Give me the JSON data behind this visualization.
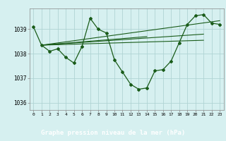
{
  "title": "Graphe pression niveau de la mer (hPa)",
  "background_color": "#d6f0f0",
  "plot_bg_color": "#d6f0f0",
  "label_bg_color": "#2d6b2d",
  "label_text_color": "#ffffff",
  "grid_color": "#b0d4d4",
  "line_color": "#1a5c1a",
  "x_ticks": [
    0,
    1,
    2,
    3,
    4,
    5,
    6,
    7,
    8,
    9,
    10,
    11,
    12,
    13,
    14,
    15,
    16,
    17,
    18,
    19,
    20,
    21,
    22,
    23
  ],
  "x_tick_labels": [
    "0",
    "1",
    "2",
    "3",
    "4",
    "5",
    "6",
    "7",
    "8",
    "9",
    "10",
    "11",
    "12",
    "13",
    "14",
    "15",
    "16",
    "17",
    "18",
    "19",
    "20",
    "21",
    "22",
    "23"
  ],
  "ylim": [
    1035.7,
    1039.85
  ],
  "y_ticks": [
    1036,
    1037,
    1038,
    1039
  ],
  "main_data": {
    "x": [
      0,
      1,
      2,
      3,
      4,
      5,
      6,
      7,
      8,
      9,
      10,
      11,
      12,
      13,
      14,
      15,
      16,
      17,
      18,
      19,
      20,
      21,
      22,
      23
    ],
    "y": [
      1039.1,
      1038.35,
      1038.1,
      1038.2,
      1037.85,
      1037.62,
      1038.3,
      1039.45,
      1039.0,
      1038.85,
      1037.75,
      1037.25,
      1036.75,
      1036.55,
      1036.6,
      1037.3,
      1037.35,
      1037.7,
      1038.45,
      1039.2,
      1039.55,
      1039.6,
      1039.25,
      1039.2
    ]
  },
  "trend_lines": [
    {
      "x": [
        1,
        23
      ],
      "y": [
        1038.35,
        1039.35
      ]
    },
    {
      "x": [
        1,
        21
      ],
      "y": [
        1038.35,
        1038.8
      ]
    },
    {
      "x": [
        1,
        21
      ],
      "y": [
        1038.35,
        1038.55
      ]
    },
    {
      "x": [
        1,
        14
      ],
      "y": [
        1038.35,
        1038.7
      ]
    }
  ],
  "figsize": [
    3.2,
    2.0
  ],
  "dpi": 100
}
